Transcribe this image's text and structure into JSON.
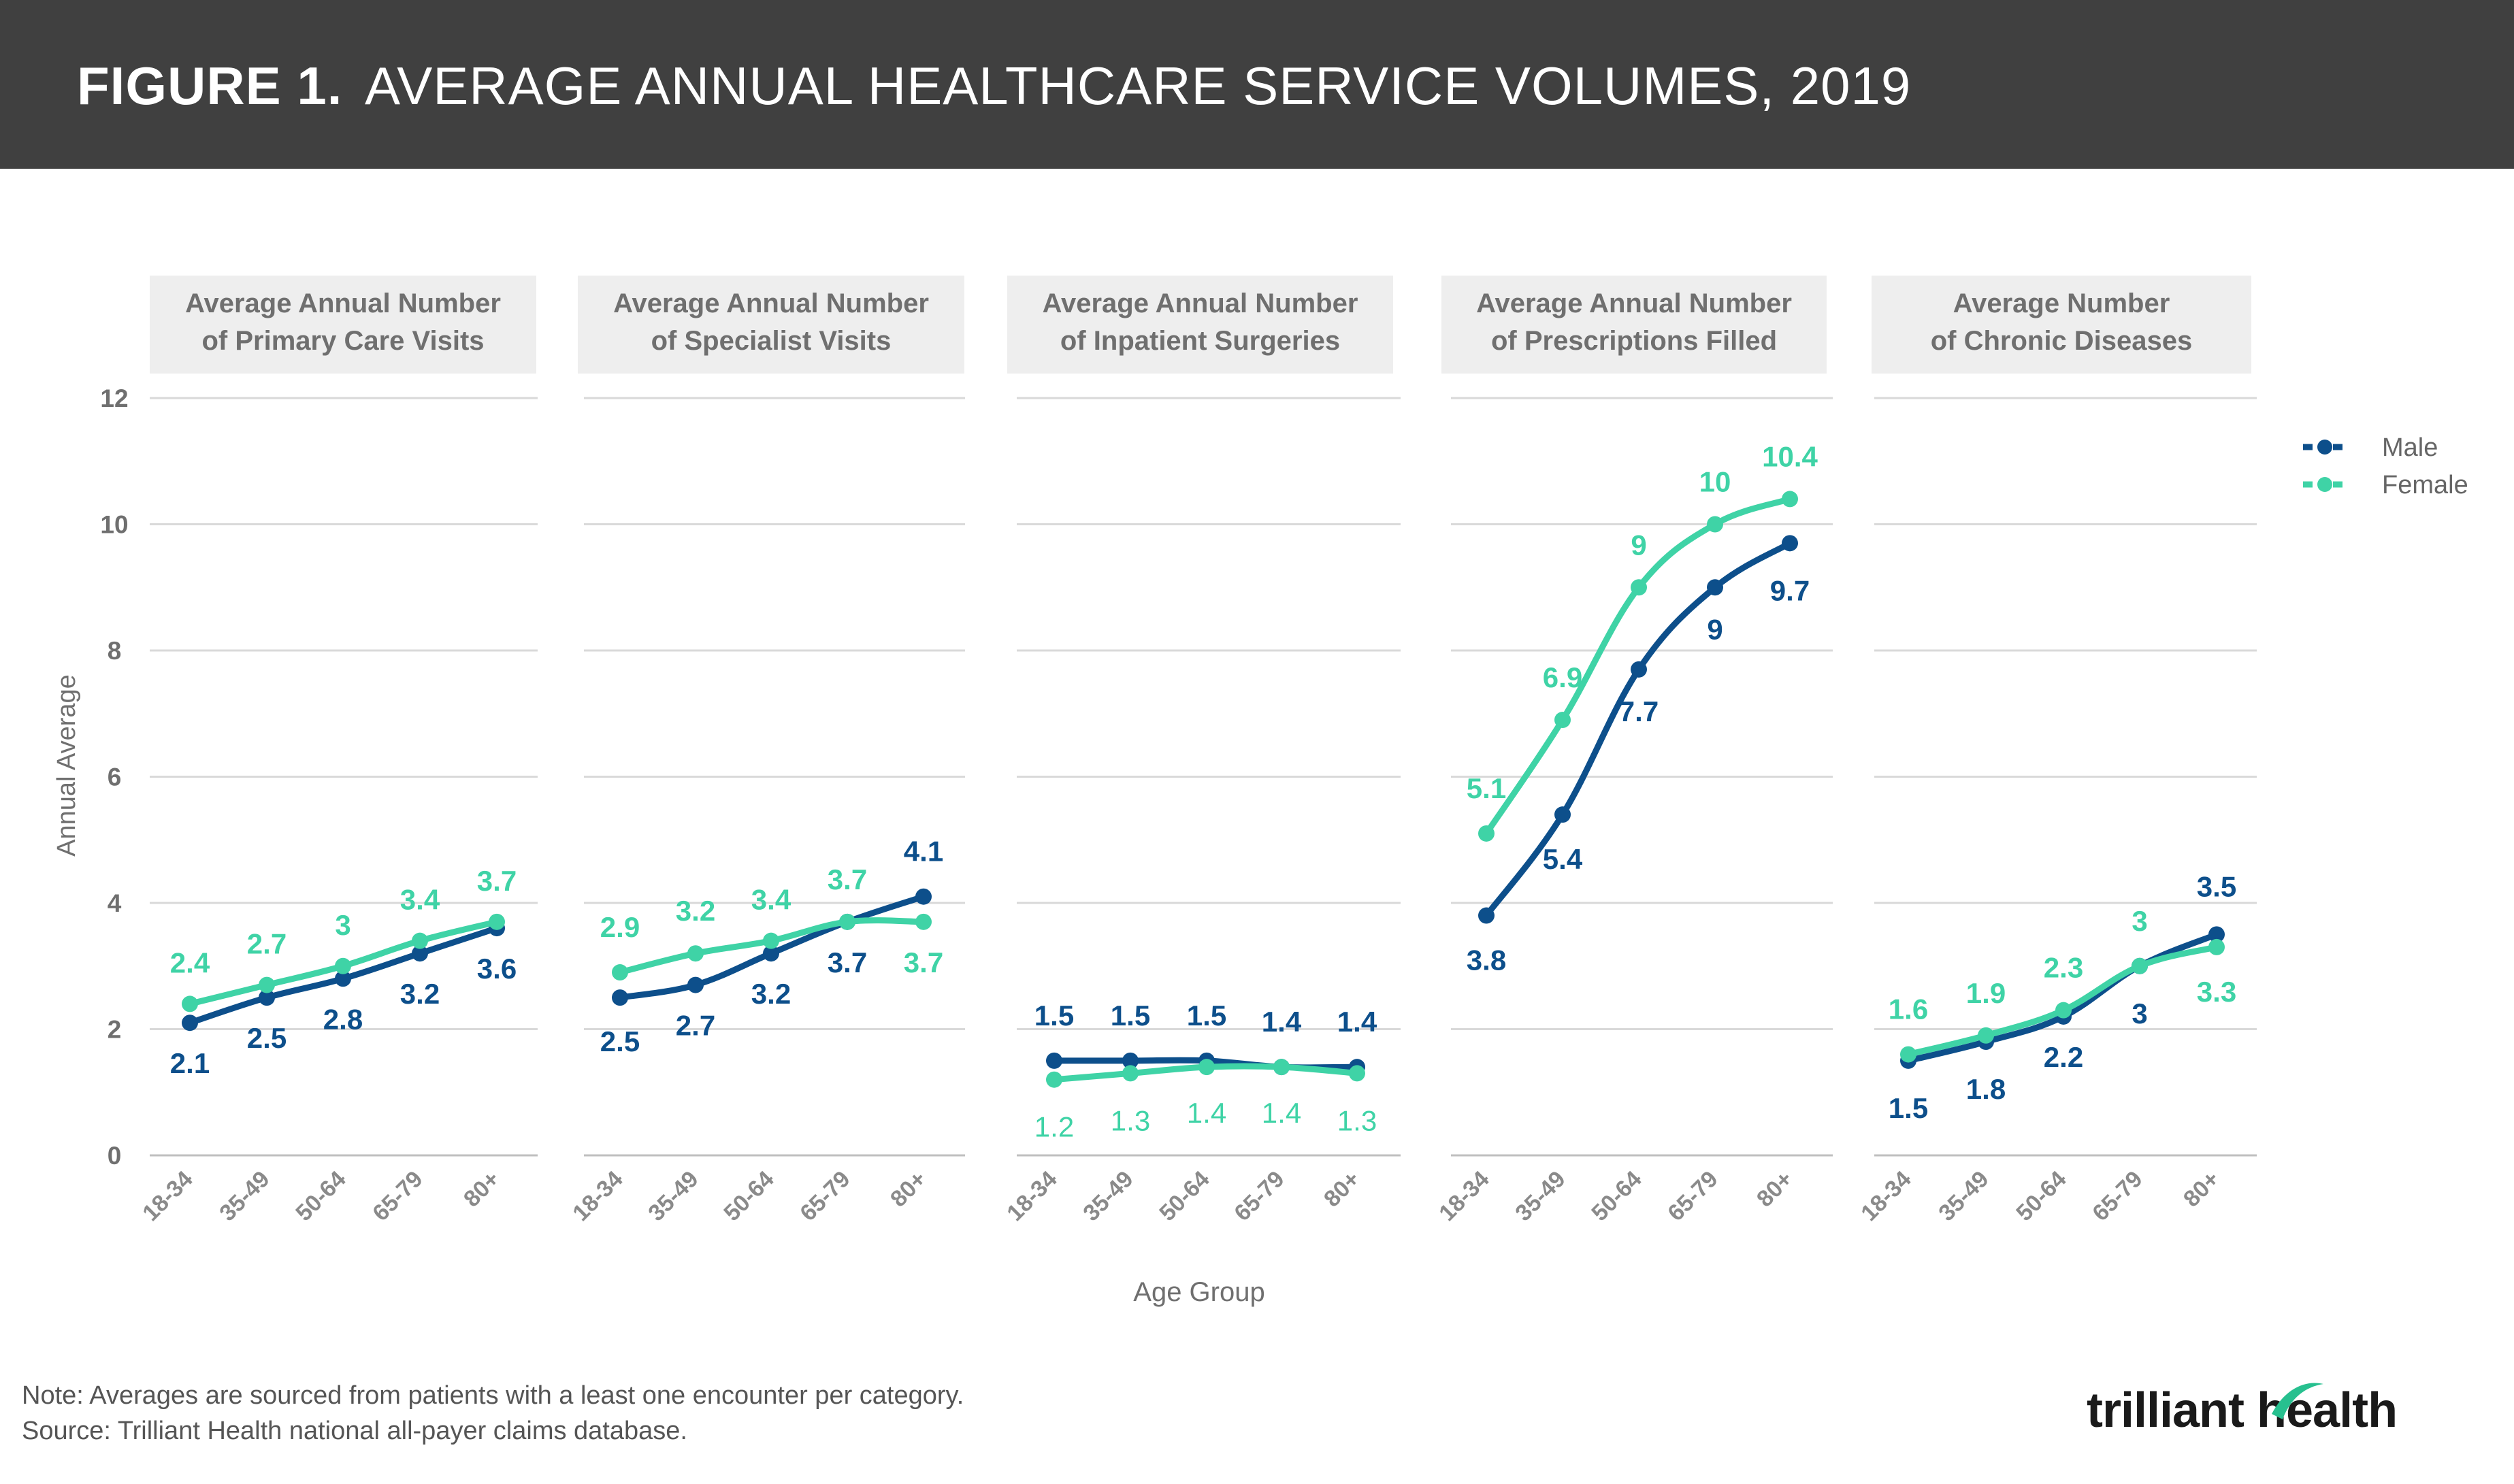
{
  "figure": {
    "label": "FIGURE 1.",
    "title": "AVERAGE ANNUAL HEALTHCARE SERVICE VOLUMES, 2019"
  },
  "footer": {
    "note": "Note: Averages are sourced from patients with a least one encounter per category.",
    "source": "Source: Trilliant Health national all-payer claims database."
  },
  "brand": {
    "name": "trilliant health"
  },
  "colors": {
    "male": "#0d4f8b",
    "female": "#3fd3a6",
    "grid": "#d9d9d9",
    "panel_title_bg": "#eeeeee",
    "axis_text": "#6f6f6f"
  },
  "chart_data": {
    "type": "line",
    "ylabel": "Annual Average",
    "xlabel": "Age Group",
    "ylim": [
      0,
      12
    ],
    "yticks": [
      0,
      2,
      4,
      6,
      8,
      10,
      12
    ],
    "grid": true,
    "legend_position": "top-right",
    "categories": [
      "18-34",
      "35-49",
      "50-64",
      "65-79",
      "80+"
    ],
    "legend": [
      "Male",
      "Female"
    ],
    "panels": [
      {
        "title_line1": "Average Annual Number",
        "title_line2": "of Primary Care Visits",
        "series": [
          {
            "name": "Male",
            "values": [
              2.1,
              2.5,
              2.8,
              3.2,
              3.6
            ]
          },
          {
            "name": "Female",
            "values": [
              2.4,
              2.7,
              3.0,
              3.4,
              3.7
            ]
          }
        ],
        "labels": {
          "Male": [
            "2.1",
            "2.5",
            "2.8",
            "3.2",
            "3.6"
          ],
          "Female": [
            "2.4",
            "2.7",
            "3",
            "3.4",
            "3.7"
          ]
        }
      },
      {
        "title_line1": "Average Annual Number",
        "title_line2": "of Specialist Visits",
        "series": [
          {
            "name": "Male",
            "values": [
              2.5,
              2.7,
              3.2,
              3.7,
              4.1
            ]
          },
          {
            "name": "Female",
            "values": [
              2.9,
              3.2,
              3.4,
              3.7,
              3.7
            ]
          }
        ],
        "labels": {
          "Male": [
            "2.5",
            "2.7",
            "3.2",
            "3.7",
            "4.1"
          ],
          "Female": [
            "2.9",
            "3.2",
            "3.4",
            "3.7",
            "3.7"
          ]
        }
      },
      {
        "title_line1": "Average Annual Number",
        "title_line2": "of Inpatient Surgeries",
        "series": [
          {
            "name": "Male",
            "values": [
              1.5,
              1.5,
              1.5,
              1.4,
              1.4
            ]
          },
          {
            "name": "Female",
            "values": [
              1.2,
              1.3,
              1.4,
              1.4,
              1.3
            ]
          }
        ],
        "labels": {
          "Male": [
            "1.5",
            "1.5",
            "1.5",
            "1.4",
            "1.4"
          ],
          "Female": [
            "1.2",
            "1.3",
            "1.4",
            "1.4",
            "1.3"
          ]
        }
      },
      {
        "title_line1": "Average Annual Number",
        "title_line2": "of Prescriptions Filled",
        "series": [
          {
            "name": "Male",
            "values": [
              3.8,
              5.4,
              7.7,
              9.0,
              9.7
            ]
          },
          {
            "name": "Female",
            "values": [
              5.1,
              6.9,
              9.0,
              10.0,
              10.4
            ]
          }
        ],
        "labels": {
          "Male": [
            "3.8",
            "5.4",
            "7.7",
            "9",
            "9.7"
          ],
          "Female": [
            "5.1",
            "6.9",
            "9",
            "10",
            "10.4"
          ]
        }
      },
      {
        "title_line1": "Average Number",
        "title_line2": "of Chronic Diseases",
        "series": [
          {
            "name": "Male",
            "values": [
              1.5,
              1.8,
              2.2,
              3.0,
              3.5
            ]
          },
          {
            "name": "Female",
            "values": [
              1.6,
              1.9,
              2.3,
              3.0,
              3.3
            ]
          }
        ],
        "labels": {
          "Male": [
            "1.5",
            "1.8",
            "2.2",
            "3",
            "3.5"
          ],
          "Female": [
            "1.6",
            "1.9",
            "2.3",
            "3",
            "3.3"
          ]
        }
      }
    ]
  }
}
